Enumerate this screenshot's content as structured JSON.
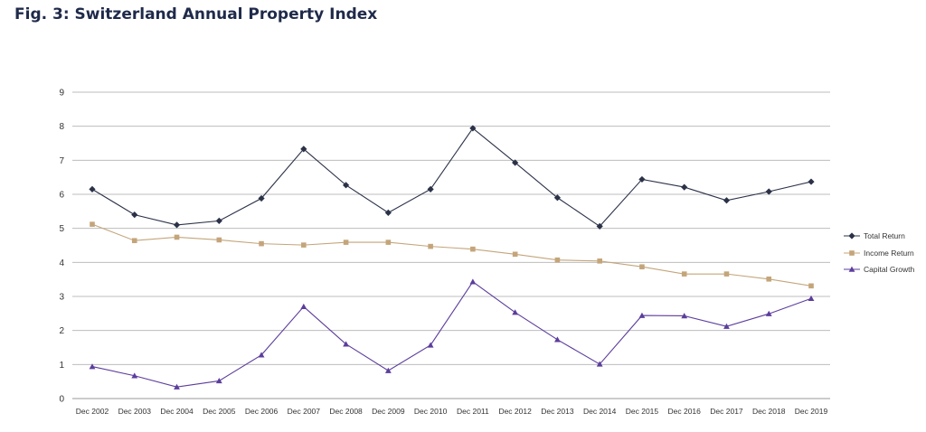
{
  "page": {
    "title": "Fig. 3: Switzerland Annual Property Index"
  },
  "chart_data": {
    "type": "line",
    "title": "",
    "xlabel": "",
    "ylabel": "",
    "ylim": [
      0,
      9
    ],
    "yticks": [
      0,
      1,
      2,
      3,
      4,
      5,
      6,
      7,
      8,
      9
    ],
    "grid": true,
    "legend_position": "right",
    "categories": [
      "Dec 2002",
      "Dec 2003",
      "Dec 2004",
      "Dec 2005",
      "Dec 2006",
      "Dec 2007",
      "Dec 2008",
      "Dec 2009",
      "Dec 2010",
      "Dec 2011",
      "Dec 2012",
      "Dec 2013",
      "Dec 2014",
      "Dec 2015",
      "Dec 2016",
      "Dec 2017",
      "Dec 2018",
      "Dec 2019"
    ],
    "series": [
      {
        "name": "Total Return",
        "color": "#2b3248",
        "marker": "diamond",
        "values": [
          6.15,
          5.4,
          5.1,
          5.22,
          5.88,
          7.33,
          6.27,
          5.46,
          6.15,
          7.94,
          6.93,
          5.9,
          5.06,
          6.44,
          6.21,
          5.82,
          6.08,
          6.37
        ]
      },
      {
        "name": "Income Return",
        "color": "#c4a57a",
        "marker": "square",
        "values": [
          5.12,
          4.64,
          4.74,
          4.66,
          4.55,
          4.51,
          4.59,
          4.59,
          4.47,
          4.39,
          4.24,
          4.07,
          4.04,
          3.87,
          3.66,
          3.66,
          3.51,
          3.31
        ]
      },
      {
        "name": "Capital Growth",
        "color": "#5c3d9c",
        "marker": "triangle",
        "values": [
          0.94,
          0.67,
          0.34,
          0.52,
          1.28,
          2.7,
          1.6,
          0.82,
          1.57,
          3.43,
          2.53,
          1.73,
          1.01,
          2.44,
          2.43,
          2.12,
          2.49,
          2.94
        ]
      }
    ]
  }
}
